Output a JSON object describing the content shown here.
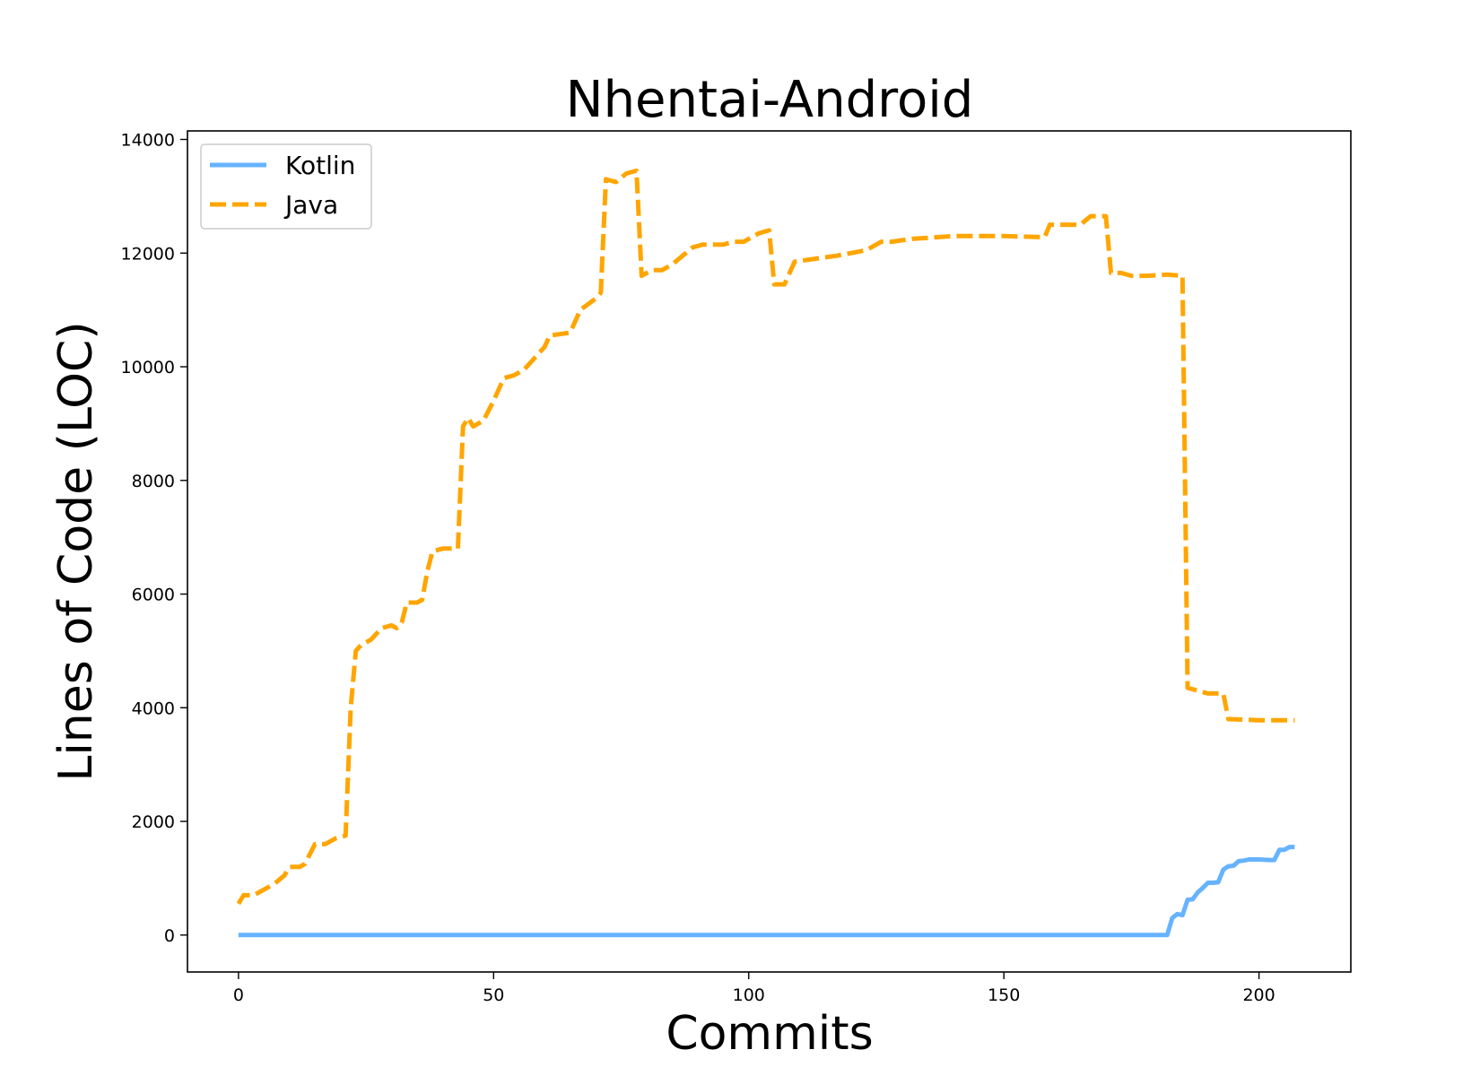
{
  "chart_data": {
    "type": "line",
    "title": "Nhentai-Android",
    "xlabel": "Commits",
    "ylabel": "Lines of Code (LOC)",
    "xlim": [
      -10,
      218
    ],
    "ylim": [
      -650,
      14150
    ],
    "xticks": [
      0,
      50,
      100,
      150,
      200
    ],
    "yticks": [
      0,
      2000,
      4000,
      6000,
      8000,
      10000,
      12000,
      14000
    ],
    "grid": false,
    "legend_position": "top-left",
    "series": [
      {
        "name": "Kotlin",
        "color": "#66b3ff",
        "style": "solid",
        "points": [
          [
            0,
            0
          ],
          [
            182,
            0
          ],
          [
            183,
            300
          ],
          [
            184,
            370
          ],
          [
            185,
            350
          ],
          [
            186,
            620
          ],
          [
            187,
            630
          ],
          [
            188,
            750
          ],
          [
            189,
            830
          ],
          [
            190,
            920
          ],
          [
            191,
            920
          ],
          [
            192,
            930
          ],
          [
            193,
            1150
          ],
          [
            194,
            1210
          ],
          [
            195,
            1220
          ],
          [
            196,
            1300
          ],
          [
            197,
            1310
          ],
          [
            198,
            1330
          ],
          [
            200,
            1330
          ],
          [
            202,
            1320
          ],
          [
            203,
            1320
          ],
          [
            204,
            1500
          ],
          [
            205,
            1500
          ],
          [
            206,
            1550
          ],
          [
            207,
            1550
          ]
        ]
      },
      {
        "name": "Java",
        "color": "#ffa500",
        "style": "dashed",
        "points": [
          [
            0,
            550
          ],
          [
            1,
            700
          ],
          [
            3,
            700
          ],
          [
            5,
            800
          ],
          [
            7,
            900
          ],
          [
            9,
            1050
          ],
          [
            10,
            1200
          ],
          [
            12,
            1200
          ],
          [
            13,
            1250
          ],
          [
            15,
            1600
          ],
          [
            17,
            1600
          ],
          [
            19,
            1700
          ],
          [
            21,
            1750
          ],
          [
            22,
            4000
          ],
          [
            23,
            5000
          ],
          [
            24,
            5100
          ],
          [
            26,
            5200
          ],
          [
            28,
            5400
          ],
          [
            30,
            5450
          ],
          [
            31,
            5400
          ],
          [
            32,
            5500
          ],
          [
            33,
            5850
          ],
          [
            35,
            5850
          ],
          [
            36,
            5900
          ],
          [
            37,
            6400
          ],
          [
            38,
            6750
          ],
          [
            40,
            6800
          ],
          [
            43,
            6800
          ],
          [
            44,
            8950
          ],
          [
            45,
            9100
          ],
          [
            46,
            8950
          ],
          [
            48,
            9050
          ],
          [
            50,
            9400
          ],
          [
            52,
            9800
          ],
          [
            54,
            9850
          ],
          [
            56,
            9950
          ],
          [
            58,
            10150
          ],
          [
            60,
            10350
          ],
          [
            61,
            10550
          ],
          [
            65,
            10600
          ],
          [
            67,
            11000
          ],
          [
            70,
            11200
          ],
          [
            71,
            11300
          ],
          [
            72,
            13300
          ],
          [
            74,
            13250
          ],
          [
            76,
            13400
          ],
          [
            78,
            13450
          ],
          [
            79,
            11600
          ],
          [
            81,
            11700
          ],
          [
            83,
            11700
          ],
          [
            85,
            11800
          ],
          [
            87,
            11950
          ],
          [
            89,
            12100
          ],
          [
            91,
            12150
          ],
          [
            93,
            12150
          ],
          [
            95,
            12150
          ],
          [
            97,
            12200
          ],
          [
            99,
            12200
          ],
          [
            100,
            12250
          ],
          [
            102,
            12350
          ],
          [
            104,
            12400
          ],
          [
            105,
            11450
          ],
          [
            107,
            11450
          ],
          [
            109,
            11850
          ],
          [
            113,
            11900
          ],
          [
            117,
            11950
          ],
          [
            120,
            12000
          ],
          [
            123,
            12050
          ],
          [
            126,
            12200
          ],
          [
            128,
            12200
          ],
          [
            132,
            12250
          ],
          [
            140,
            12300
          ],
          [
            150,
            12300
          ],
          [
            158,
            12280
          ],
          [
            159,
            12500
          ],
          [
            165,
            12500
          ],
          [
            167,
            12650
          ],
          [
            170,
            12650
          ],
          [
            171,
            11650
          ],
          [
            173,
            11650
          ],
          [
            175,
            11600
          ],
          [
            178,
            11600
          ],
          [
            182,
            11620
          ],
          [
            185,
            11600
          ],
          [
            186,
            4350
          ],
          [
            188,
            4300
          ],
          [
            190,
            4250
          ],
          [
            193,
            4250
          ],
          [
            194,
            3800
          ],
          [
            200,
            3780
          ],
          [
            207,
            3780
          ]
        ]
      }
    ]
  }
}
